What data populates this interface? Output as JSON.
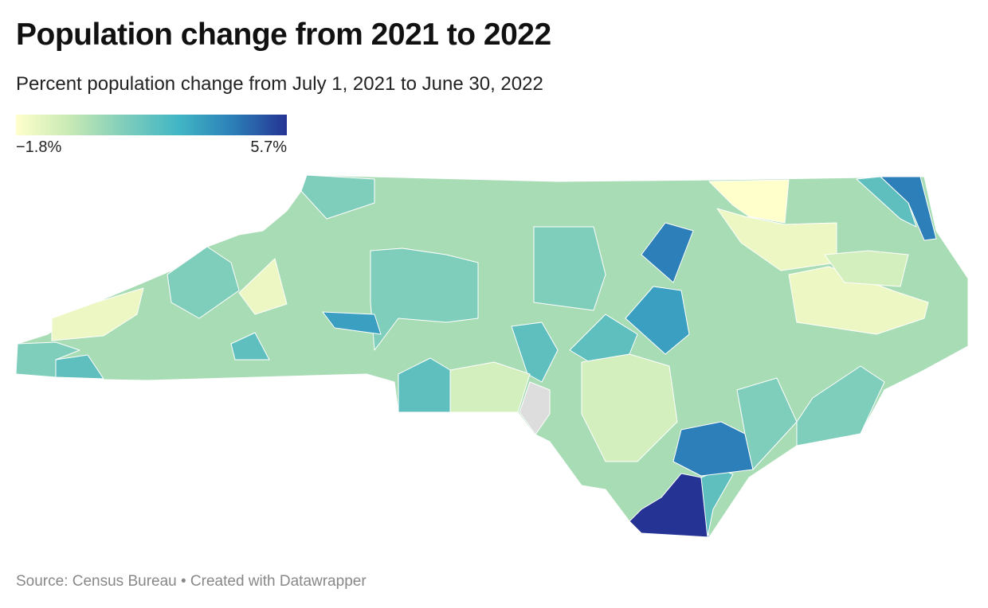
{
  "title": "Population change from 2021 to 2022",
  "subtitle": "Percent population change from July 1, 2021 to June 30, 2022",
  "legend": {
    "min_label": "−1.8%",
    "max_label": "5.7%",
    "min_value": -1.8,
    "max_value": 5.7,
    "colors": [
      "#ffffcc",
      "#c7e9b4",
      "#7fcdbb",
      "#41b6c4",
      "#2c7fb8",
      "#253494"
    ]
  },
  "map": {
    "colors": {
      "base": "#a8dcb5",
      "darkest": "#253494",
      "dark_blue": "#2c7fb8",
      "mid_blue": "#3a9fc0",
      "teal": "#5fbfbf",
      "light_teal": "#7fcdbb",
      "pale_green": "#d4efbe",
      "pale_yellow": "#ecf7c4",
      "yellow": "#ffffcc",
      "no_data": "#dddddd",
      "border": "#ffffff"
    }
  },
  "footer": {
    "source": "Source: Census Bureau • Created with Datawrapper"
  }
}
